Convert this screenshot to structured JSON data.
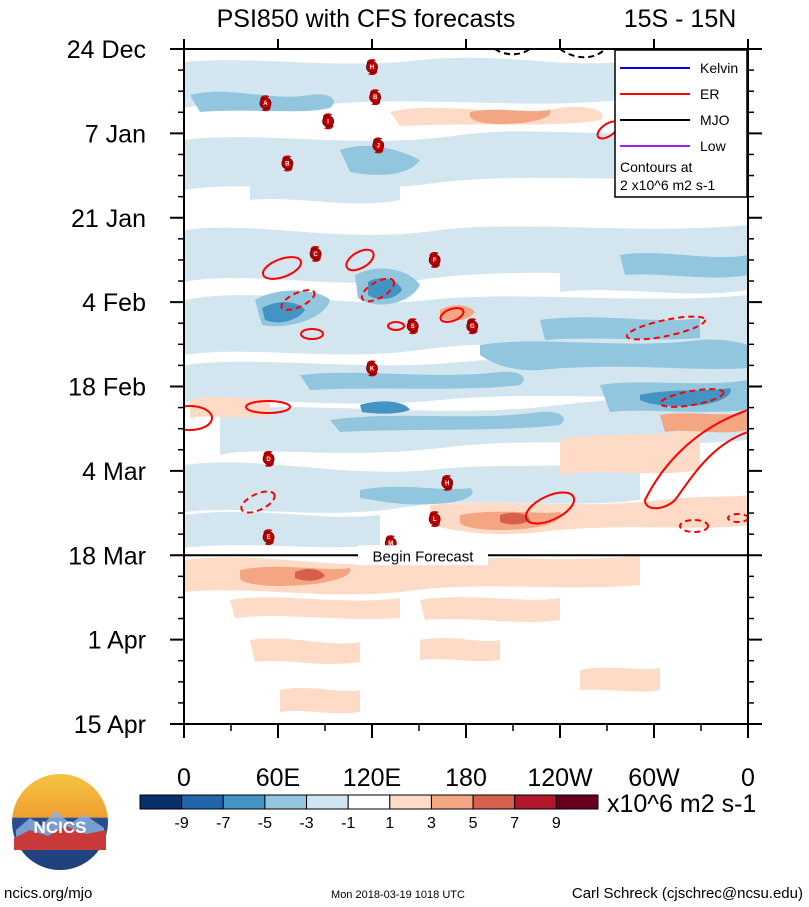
{
  "chart_data": {
    "type": "heatmap",
    "title": "PSI850 with CFS forecasts",
    "region": "15S - 15N",
    "x_ticks": [
      {
        "label": "0",
        "lon": 0
      },
      {
        "label": "60E",
        "lon": 60
      },
      {
        "label": "120E",
        "lon": 120
      },
      {
        "label": "180",
        "lon": 180
      },
      {
        "label": "120W",
        "lon": 240
      },
      {
        "label": "60W",
        "lon": 300
      },
      {
        "label": "0",
        "lon": 360
      }
    ],
    "xlim": [
      0,
      360
    ],
    "y_ticks": [
      {
        "label": "24 Dec",
        "day": 0
      },
      {
        "label": "7 Jan",
        "day": 14
      },
      {
        "label": "21 Jan",
        "day": 28
      },
      {
        "label": "4 Feb",
        "day": 42
      },
      {
        "label": "18 Feb",
        "day": 56
      },
      {
        "label": "4 Mar",
        "day": 70
      },
      {
        "label": "18 Mar",
        "day": 84
      },
      {
        "label": "1 Apr",
        "day": 98
      },
      {
        "label": "15 Apr",
        "day": 112
      }
    ],
    "ylim_days": [
      0,
      112
    ],
    "forecast_label": "Begin Forecast",
    "forecast_start_day": 84,
    "colorbar": {
      "tick_labels": [
        "-9",
        "-7",
        "-5",
        "-3",
        "-1",
        "1",
        "3",
        "5",
        "7",
        "9"
      ],
      "colors": [
        "#08306b",
        "#2166ac",
        "#4393c3",
        "#92c5de",
        "#d1e5f0",
        "#ffffff",
        "#fddbc7",
        "#f4a582",
        "#d6604d",
        "#b2182b",
        "#67001f"
      ],
      "unit": "x10^6 m2 s-1"
    },
    "legend": {
      "placement": "top-right",
      "items": [
        {
          "label": "Kelvin",
          "color": "#0000ff"
        },
        {
          "label": "ER",
          "color": "#ff0000"
        },
        {
          "label": "MJO",
          "color": "#000000"
        },
        {
          "label": "Low",
          "color": "#a020f0"
        }
      ],
      "note_line1": "Contours at",
      "note_line2": "2 x10^6 m2 s-1"
    },
    "storms": [
      {
        "id": "H",
        "lon": 120,
        "day": 3
      },
      {
        "id": "B",
        "lon": 122,
        "day": 8
      },
      {
        "id": "A",
        "lon": 52,
        "day": 9
      },
      {
        "id": "I",
        "lon": 92,
        "day": 12
      },
      {
        "id": "J",
        "lon": 124,
        "day": 16
      },
      {
        "id": "B",
        "lon": 66,
        "day": 19
      },
      {
        "id": "C",
        "lon": 84,
        "day": 34
      },
      {
        "id": "F",
        "lon": 160,
        "day": 35
      },
      {
        "id": "S",
        "lon": 146,
        "day": 46
      },
      {
        "id": "G",
        "lon": 184,
        "day": 46
      },
      {
        "id": "K",
        "lon": 120,
        "day": 53
      },
      {
        "id": "D",
        "lon": 54,
        "day": 68
      },
      {
        "id": "H",
        "lon": 168,
        "day": 72
      },
      {
        "id": "L",
        "lon": 160,
        "day": 78
      },
      {
        "id": "E",
        "lon": 54,
        "day": 81
      },
      {
        "id": "M",
        "lon": 132,
        "day": 82
      }
    ]
  },
  "footer": {
    "logo_text": "NCICS",
    "left": "ncics.org/mjo",
    "center": "Mon 2018-03-19 1018 UTC",
    "right": "Carl Schreck (cjschrec@ncsu.edu)"
  }
}
